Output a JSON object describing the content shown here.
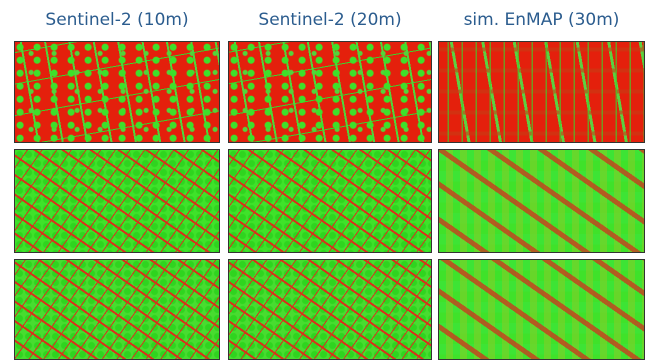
{
  "headers": [
    "Sentinel-2 (10m)",
    "Sentinel-2 (20m)",
    "sim. EnMAP (30m)"
  ]
}
